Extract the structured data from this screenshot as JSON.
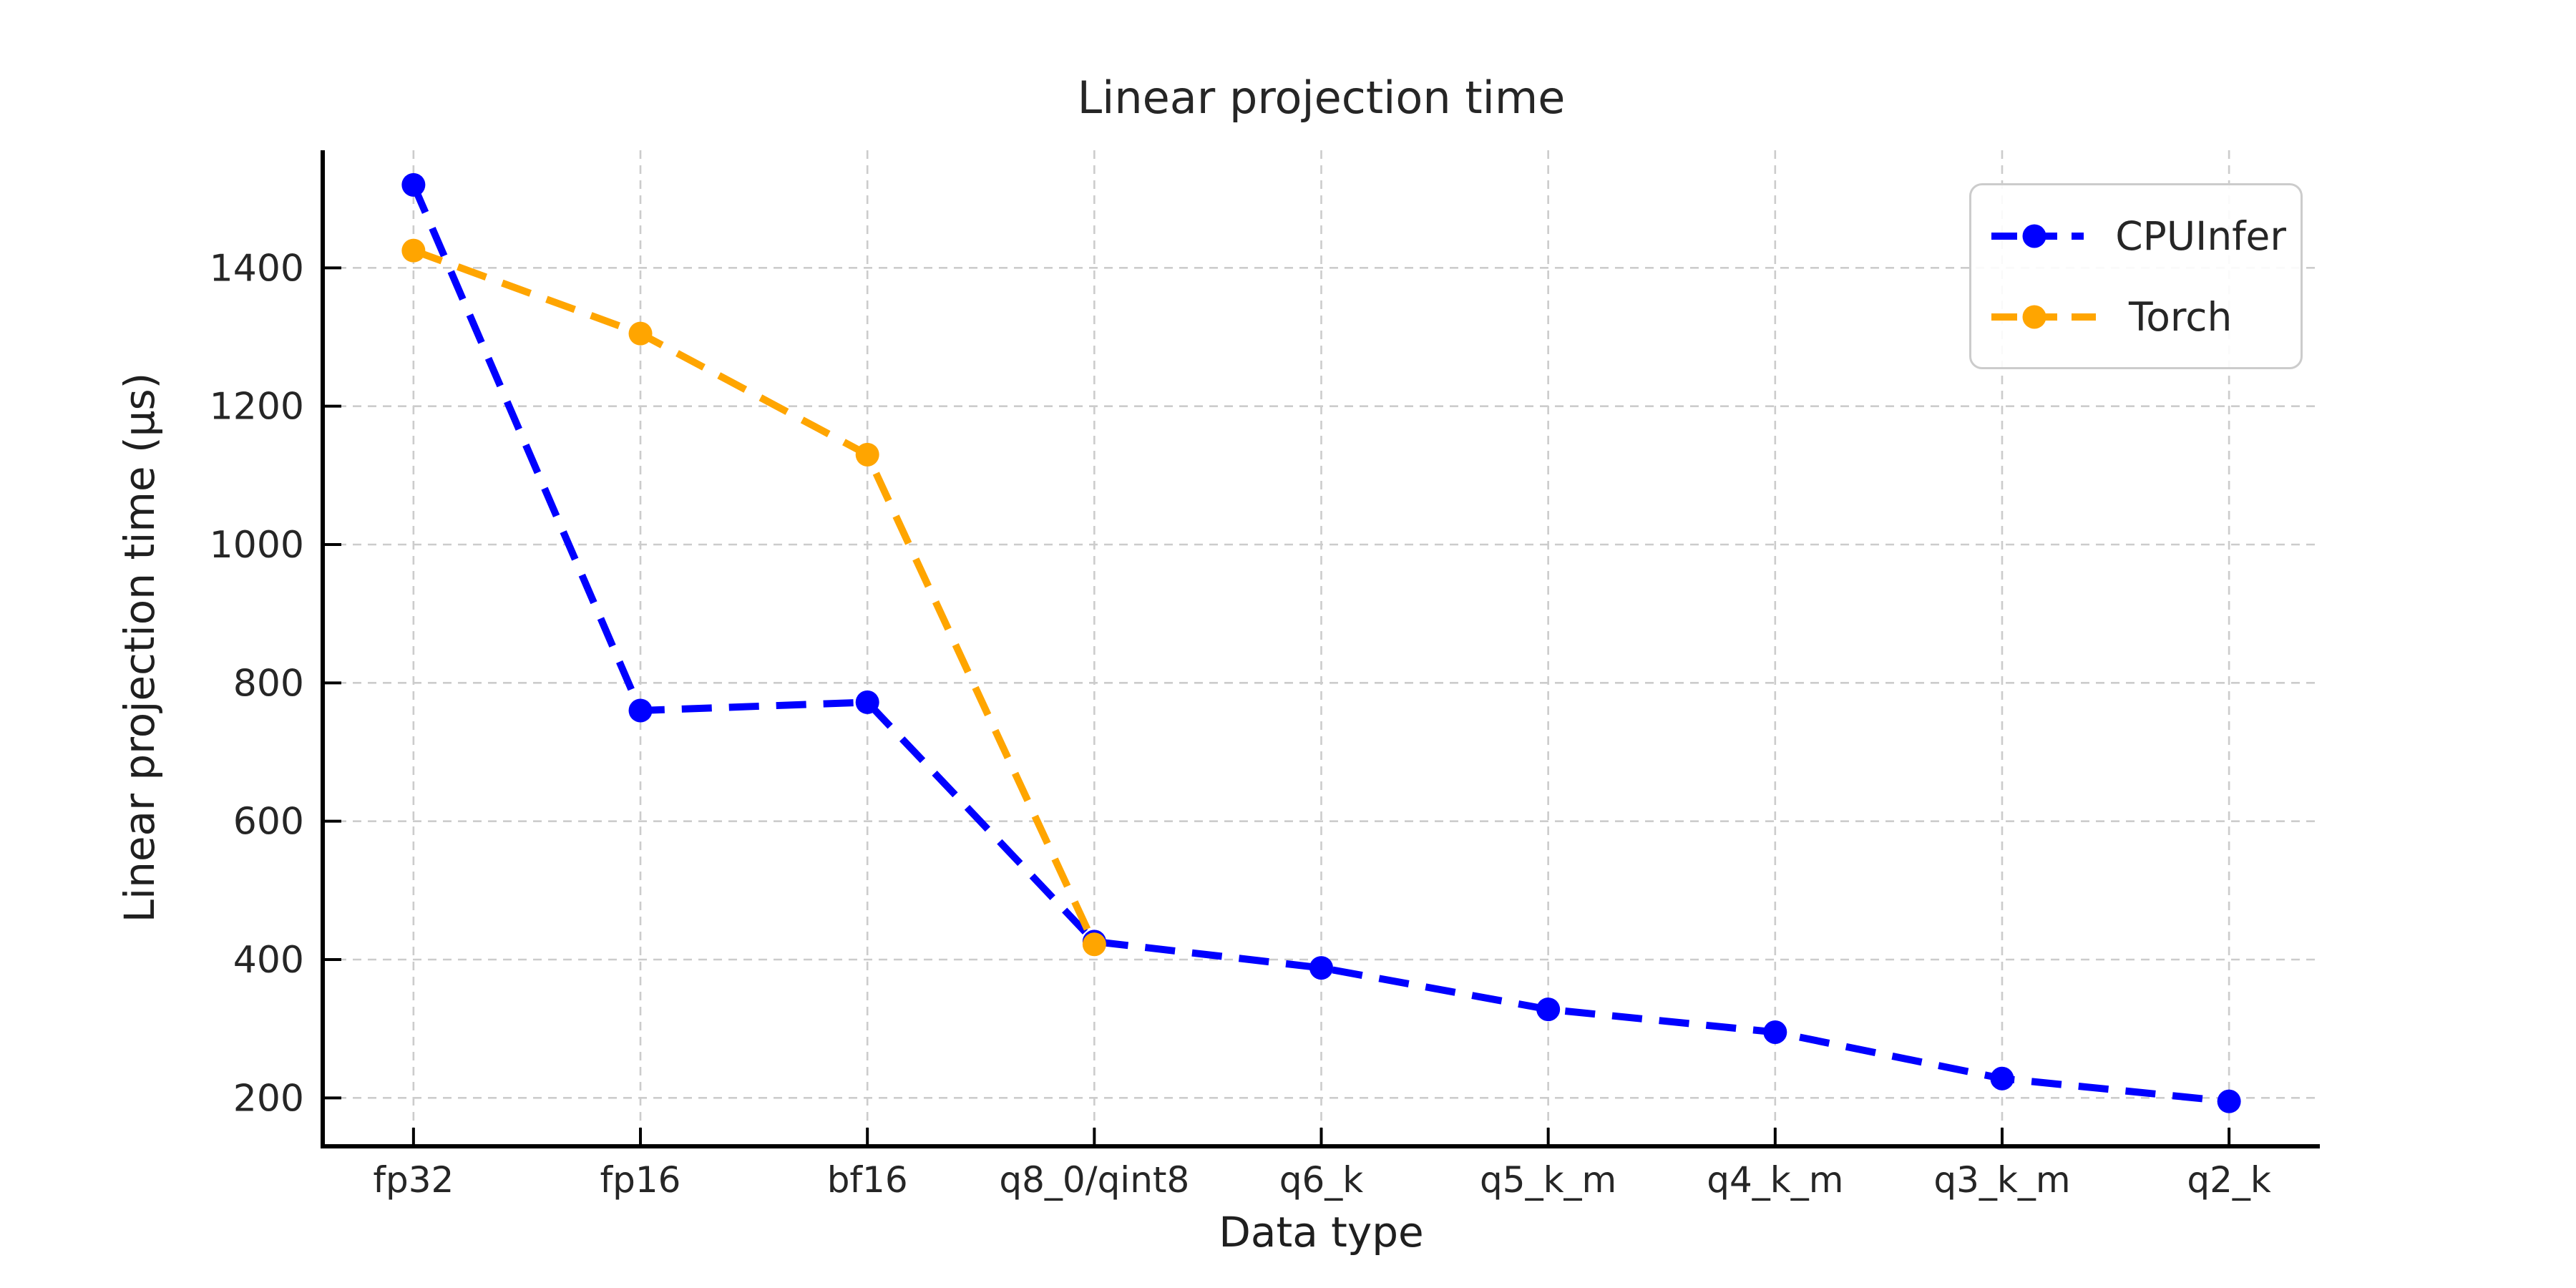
{
  "figure": {
    "background": "#ffffff",
    "text_color": "#262626",
    "grid_color": "#cccccc",
    "axis_color": "#000000"
  },
  "chart_data": {
    "type": "line",
    "title": "Linear projection time",
    "xlabel": "Data type",
    "ylabel": "Linear projection time (μs)",
    "categories": [
      "fp32",
      "fp16",
      "bf16",
      "q8_0/qint8",
      "q6_k",
      "q5_k_m",
      "q4_k_m",
      "q3_k_m",
      "q2_k"
    ],
    "series": [
      {
        "name": "CPUInfer",
        "color": "#0000ff",
        "line_style": "dashed",
        "marker": "circle",
        "values": [
          1520,
          760,
          772,
          426,
          388,
          328,
          295,
          228,
          195
        ]
      },
      {
        "name": "Torch",
        "color": "#ffa500",
        "line_style": "dashed",
        "marker": "circle",
        "values": [
          1425,
          1305,
          1130,
          422,
          null,
          null,
          null,
          null,
          null
        ]
      }
    ],
    "yticks": [
      200,
      400,
      600,
      800,
      1000,
      1200,
      1400
    ],
    "ylim": [
      130,
      1570
    ],
    "grid": true,
    "grid_style": "dashed",
    "legend_position": "upper right",
    "legend_labels": [
      "CPUInfer",
      "Torch"
    ]
  }
}
